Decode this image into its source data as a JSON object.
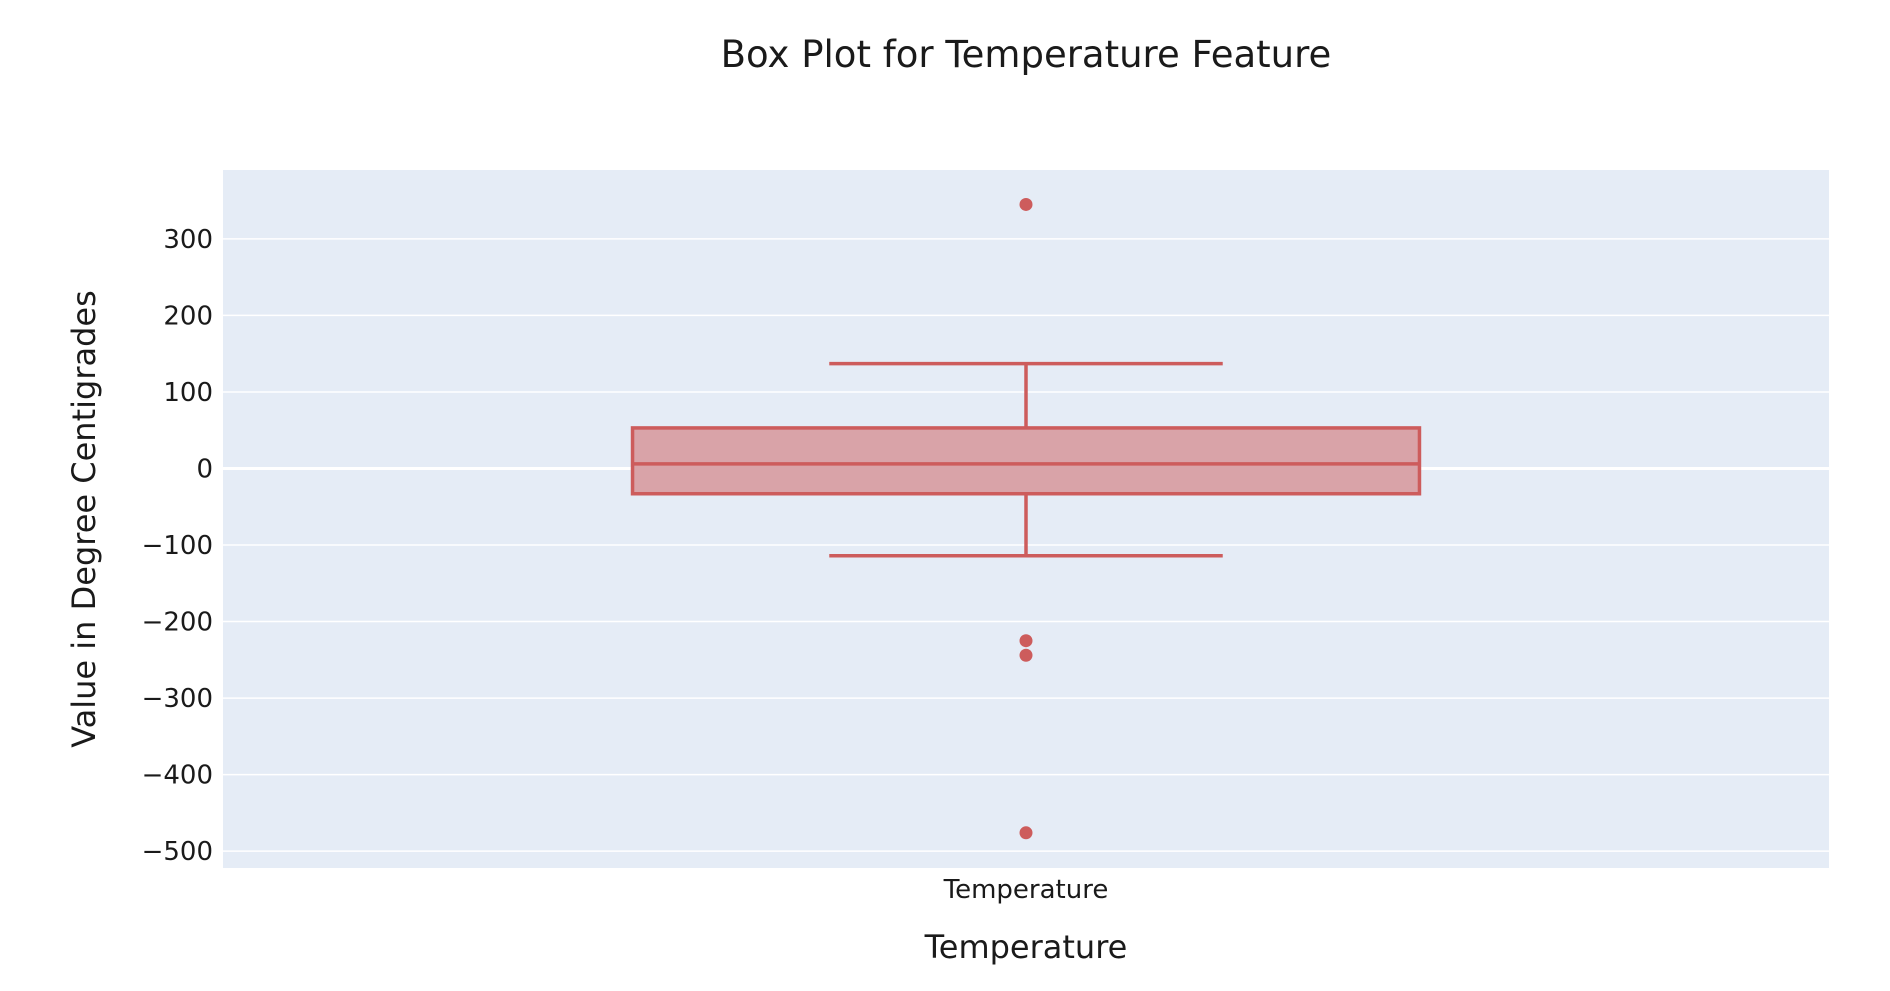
{
  "chart_data": {
    "type": "box",
    "title": "Box Plot for Temperature Feature",
    "xlabel": "Temperature",
    "ylabel": "Value in Degree Centigrades",
    "categories": [
      "Temperature"
    ],
    "ylim": [
      -522,
      390
    ],
    "y_ticks": [
      300,
      200,
      100,
      0,
      -100,
      -200,
      -300,
      -400,
      -500
    ],
    "y_tick_labels": [
      "300",
      "200",
      "100",
      "0",
      "−100",
      "−200",
      "−300",
      "−400",
      "−500"
    ],
    "grid": true,
    "series": [
      {
        "category": "Temperature",
        "lower_fence": -114,
        "q1": -33,
        "median": 6,
        "q3": 53,
        "upper_fence": 137,
        "outliers": [
          345,
          -225,
          -244,
          -476
        ]
      }
    ],
    "colors": {
      "box_line": "#cd5c5c",
      "box_fill": "#d9a3a8",
      "plot_bg": "#e5ecf6",
      "grid": "#ffffff"
    }
  }
}
